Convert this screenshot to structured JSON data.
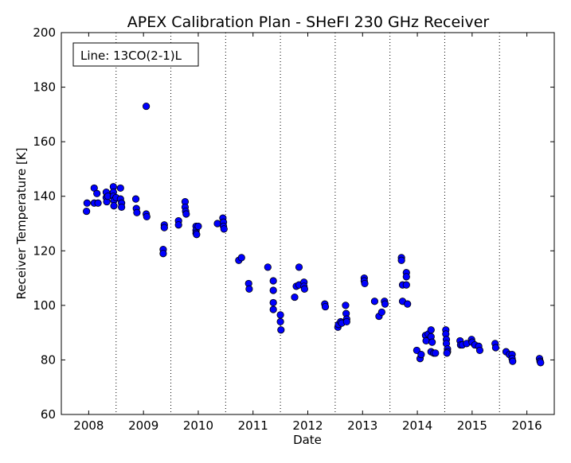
{
  "chart_data": {
    "type": "scatter",
    "title": "APEX Calibration Plan - SHeFI 230 GHz Receiver",
    "xlabel": "Date",
    "ylabel": "Receiver Temperature [K]",
    "xlim": [
      2007.5,
      2016.5
    ],
    "ylim": [
      60,
      200
    ],
    "x_ticks": [
      2008,
      2009,
      2010,
      2011,
      2012,
      2013,
      2014,
      2015,
      2016
    ],
    "x_tick_labels": [
      "2008",
      "2009",
      "2010",
      "2011",
      "2012",
      "2013",
      "2014",
      "2015",
      "2016"
    ],
    "y_ticks": [
      60,
      80,
      100,
      120,
      140,
      160,
      180,
      200
    ],
    "y_tick_labels": [
      "60",
      "80",
      "100",
      "120",
      "140",
      "160",
      "180",
      "200"
    ],
    "vertical_dotted_lines": [
      2008.5,
      2009.5,
      2010.5,
      2011.5,
      2012.5,
      2013.5,
      2014.5,
      2015.5
    ],
    "grid": false,
    "marker_color": "#0000ff",
    "marker_edge_color": "#000000",
    "legend_box_text": "Line: 13CO(2-1)L",
    "legend_box_placement": "top-left",
    "points": [
      [
        2007.96,
        134.5
      ],
      [
        2007.97,
        137.5
      ],
      [
        2008.1,
        143
      ],
      [
        2008.1,
        137.5
      ],
      [
        2008.15,
        141
      ],
      [
        2008.17,
        137.5
      ],
      [
        2008.32,
        141.5
      ],
      [
        2008.32,
        139.5
      ],
      [
        2008.33,
        138
      ],
      [
        2008.35,
        140
      ],
      [
        2008.45,
        143.5
      ],
      [
        2008.45,
        141.5
      ],
      [
        2008.45,
        140
      ],
      [
        2008.46,
        138.5
      ],
      [
        2008.46,
        136.5
      ],
      [
        2008.5,
        139.5
      ],
      [
        2008.58,
        143
      ],
      [
        2008.58,
        139
      ],
      [
        2008.6,
        137.5
      ],
      [
        2008.6,
        136
      ],
      [
        2008.86,
        139
      ],
      [
        2008.87,
        135.5
      ],
      [
        2008.88,
        134
      ],
      [
        2009.05,
        173
      ],
      [
        2009.05,
        133.5
      ],
      [
        2009.06,
        132.5
      ],
      [
        2009.38,
        129.5
      ],
      [
        2009.38,
        128.5
      ],
      [
        2009.36,
        120.5
      ],
      [
        2009.36,
        119
      ],
      [
        2009.64,
        131
      ],
      [
        2009.64,
        129.5
      ],
      [
        2009.76,
        138
      ],
      [
        2009.76,
        136
      ],
      [
        2009.77,
        134.5
      ],
      [
        2009.78,
        133.5
      ],
      [
        2009.96,
        129
      ],
      [
        2009.96,
        127.5
      ],
      [
        2009.96,
        126.5
      ],
      [
        2009.97,
        126
      ],
      [
        2010.0,
        129
      ],
      [
        2010.35,
        130
      ],
      [
        2010.45,
        132
      ],
      [
        2010.46,
        130.5
      ],
      [
        2010.46,
        129
      ],
      [
        2010.47,
        128
      ],
      [
        2010.74,
        116.5
      ],
      [
        2010.79,
        117.5
      ],
      [
        2010.92,
        108
      ],
      [
        2010.93,
        106
      ],
      [
        2011.27,
        114
      ],
      [
        2011.37,
        109
      ],
      [
        2011.37,
        105.5
      ],
      [
        2011.37,
        101
      ],
      [
        2011.37,
        98.5
      ],
      [
        2011.5,
        96.5
      ],
      [
        2011.5,
        94
      ],
      [
        2011.51,
        91
      ],
      [
        2011.76,
        103
      ],
      [
        2011.79,
        107
      ],
      [
        2011.84,
        114
      ],
      [
        2011.84,
        107.5
      ],
      [
        2011.93,
        108.5
      ],
      [
        2011.93,
        107
      ],
      [
        2011.94,
        106
      ],
      [
        2012.31,
        100.5
      ],
      [
        2012.32,
        99.5
      ],
      [
        2012.55,
        92
      ],
      [
        2012.56,
        93
      ],
      [
        2012.6,
        94
      ],
      [
        2012.62,
        93.5
      ],
      [
        2012.69,
        100
      ],
      [
        2012.7,
        97
      ],
      [
        2012.71,
        95
      ],
      [
        2012.71,
        94
      ],
      [
        2013.03,
        110
      ],
      [
        2013.03,
        109
      ],
      [
        2013.04,
        108
      ],
      [
        2013.22,
        101.5
      ],
      [
        2013.3,
        96
      ],
      [
        2013.35,
        97.5
      ],
      [
        2013.4,
        101.5
      ],
      [
        2013.41,
        100.5
      ],
      [
        2013.71,
        117.5
      ],
      [
        2013.71,
        116.5
      ],
      [
        2013.73,
        107.5
      ],
      [
        2013.73,
        101.5
      ],
      [
        2013.8,
        112
      ],
      [
        2013.8,
        110.5
      ],
      [
        2013.8,
        107.5
      ],
      [
        2013.82,
        100.5
      ],
      [
        2013.99,
        83.5
      ],
      [
        2014.05,
        80.5
      ],
      [
        2014.07,
        82
      ],
      [
        2014.15,
        89
      ],
      [
        2014.16,
        87
      ],
      [
        2014.2,
        89.5
      ],
      [
        2014.25,
        91
      ],
      [
        2014.25,
        88.5
      ],
      [
        2014.27,
        86.5
      ],
      [
        2014.25,
        83
      ],
      [
        2014.3,
        82.5
      ],
      [
        2014.33,
        82.5
      ],
      [
        2014.52,
        91
      ],
      [
        2014.52,
        89.5
      ],
      [
        2014.53,
        87.5
      ],
      [
        2014.53,
        86
      ],
      [
        2014.55,
        84
      ],
      [
        2014.55,
        83
      ],
      [
        2014.54,
        82.5
      ],
      [
        2014.78,
        87
      ],
      [
        2014.79,
        85.5
      ],
      [
        2014.82,
        85.5
      ],
      [
        2014.9,
        86
      ],
      [
        2014.99,
        87.5
      ],
      [
        2015.0,
        86.5
      ],
      [
        2015.05,
        85.5
      ],
      [
        2015.12,
        85
      ],
      [
        2015.14,
        83.5
      ],
      [
        2015.42,
        86
      ],
      [
        2015.43,
        84.5
      ],
      [
        2015.62,
        83
      ],
      [
        2015.68,
        82
      ],
      [
        2015.73,
        82
      ],
      [
        2015.73,
        80.5
      ],
      [
        2015.74,
        79.5
      ],
      [
        2016.23,
        80.5
      ],
      [
        2016.24,
        79.5
      ],
      [
        2016.25,
        79
      ]
    ]
  }
}
